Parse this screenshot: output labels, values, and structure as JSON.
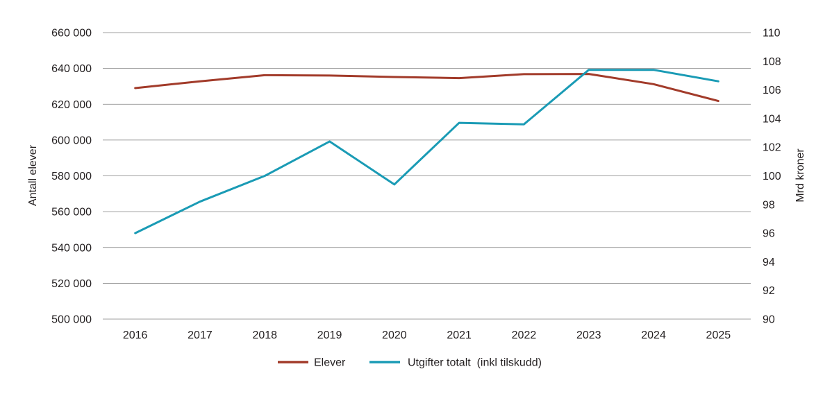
{
  "chart_data": {
    "type": "line",
    "x": [
      "2016",
      "2017",
      "2018",
      "2019",
      "2020",
      "2021",
      "2022",
      "2023",
      "2024",
      "2025"
    ],
    "series": [
      {
        "name": "Elever",
        "axis": "left",
        "color": "#a23b2a",
        "values": [
          629000,
          632800,
          636200,
          636000,
          635200,
          634600,
          636800,
          636900,
          631200,
          621800
        ]
      },
      {
        "name": "Utgifter totalt  (inkl tilskudd)",
        "axis": "right",
        "color": "#1a9bb5",
        "values": [
          96.0,
          98.2,
          100.0,
          102.4,
          99.4,
          103.7,
          103.6,
          107.4,
          107.4,
          106.6
        ]
      }
    ],
    "ylabel_left": "Antall elever",
    "ylabel_right": "Mrd kroner",
    "ylim_left": [
      500000,
      660000
    ],
    "ylim_right": [
      90,
      110
    ],
    "yticks_left": [
      "500 000",
      "520 000",
      "540 000",
      "560 000",
      "580 000",
      "600 000",
      "620 000",
      "640 000",
      "660 000"
    ],
    "yticks_right": [
      "90",
      "92",
      "94",
      "96",
      "98",
      "100",
      "102",
      "104",
      "106",
      "108",
      "110"
    ],
    "grid": true,
    "legend_position": "bottom"
  }
}
